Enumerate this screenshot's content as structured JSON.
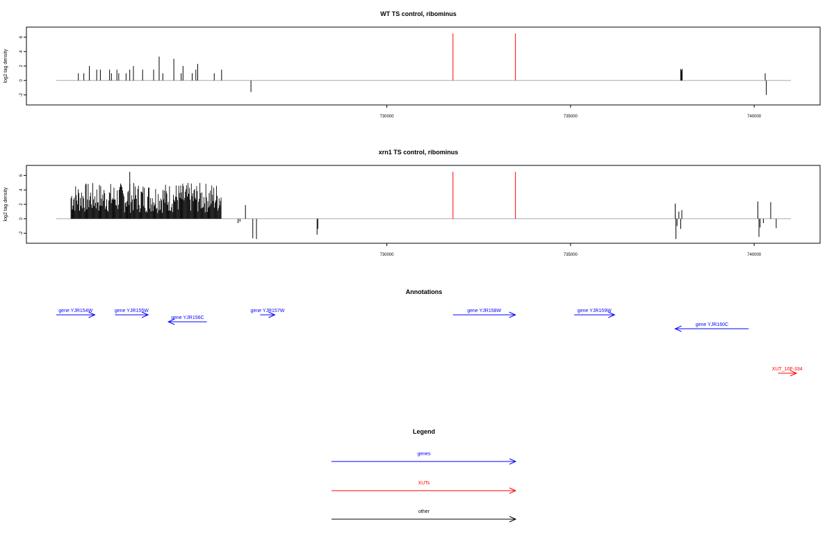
{
  "chart_data": [
    {
      "type": "bar",
      "title": "WT TS control, ribominus",
      "ylabel": "log2 tag density",
      "xlabel": "",
      "xlim": [
        721000,
        741000
      ],
      "ylim": [
        -3,
        7
      ],
      "xticks": [
        730000,
        735000,
        740000
      ],
      "yticks": [
        -2,
        0,
        2,
        4,
        6
      ],
      "baseline_color": "#aaaaaa",
      "series": [
        {
          "color": "#000000",
          "points": [
            [
              721600,
              1.0
            ],
            [
              721750,
              1.0
            ],
            [
              721900,
              2.0
            ],
            [
              722100,
              1.5
            ],
            [
              722200,
              1.5
            ],
            [
              722450,
              1.5
            ],
            [
              722500,
              1.0
            ],
            [
              722650,
              1.5
            ],
            [
              722700,
              1.0
            ],
            [
              722900,
              1.0
            ],
            [
              723000,
              1.5
            ],
            [
              723100,
              2.0
            ],
            [
              723350,
              1.5
            ],
            [
              723650,
              1.5
            ],
            [
              723800,
              3.3
            ],
            [
              723900,
              1.0
            ],
            [
              724200,
              3.0
            ],
            [
              724400,
              1.0
            ],
            [
              724450,
              2.0
            ],
            [
              724700,
              1.0
            ],
            [
              724800,
              1.5
            ],
            [
              724850,
              2.3
            ],
            [
              725300,
              1.0
            ],
            [
              725500,
              1.5
            ],
            [
              726300,
              -1.6
            ],
            [
              738000,
              1.6
            ],
            [
              738020,
              1.4
            ],
            [
              738040,
              1.6
            ],
            [
              740300,
              1.0
            ],
            [
              740330,
              -2.0
            ]
          ]
        },
        {
          "color": "#ff0000",
          "points": [
            [
              731800,
              6.5
            ],
            [
              733500,
              6.5
            ]
          ]
        }
      ]
    },
    {
      "type": "bar",
      "title": "xrn1 TS control, ribominus",
      "ylabel": "log2 tag density",
      "xlabel": "",
      "xlim": [
        721000,
        741000
      ],
      "ylim": [
        -3,
        7
      ],
      "xticks": [
        730000,
        735000,
        740000
      ],
      "yticks": [
        -2,
        0,
        2,
        4,
        6
      ],
      "baseline_color": "#aaaaaa",
      "dense_region": {
        "x": [
          721400,
          725500
        ],
        "range": [
          0.8,
          5.0
        ],
        "peak": [
          723000,
          6.5
        ]
      },
      "series": [
        {
          "color": "#000000",
          "points": [
            [
              725950,
              -0.6
            ],
            [
              726000,
              -0.4
            ],
            [
              726150,
              1.9
            ],
            [
              726350,
              -2.7
            ],
            [
              726450,
              -2.8
            ],
            [
              728100,
              -2.2
            ],
            [
              728120,
              -1.4
            ],
            [
              737850,
              2.1
            ],
            [
              737870,
              -2.8
            ],
            [
              737900,
              -1.0
            ],
            [
              737950,
              1.0
            ],
            [
              738000,
              -1.4
            ],
            [
              738030,
              1.2
            ],
            [
              740100,
              2.4
            ],
            [
              740130,
              -2.5
            ],
            [
              740160,
              -1.2
            ],
            [
              740250,
              -0.6
            ],
            [
              740450,
              2.3
            ],
            [
              740600,
              -1.3
            ]
          ]
        },
        {
          "color": "#ff0000",
          "points": [
            [
              731800,
              6.5
            ],
            [
              733500,
              6.5
            ]
          ]
        }
      ]
    }
  ],
  "annotations": {
    "title": "Annotations",
    "xlim": [
      721000,
      741000
    ],
    "items": [
      {
        "label": "gene YJR154W",
        "start": 721000,
        "end": 722050,
        "color": "#0000ff",
        "track": 0
      },
      {
        "label": "gene YJR155W",
        "start": 722600,
        "end": 723500,
        "color": "#0000ff",
        "track": 0
      },
      {
        "label": "gene YJR156C",
        "start": 725100,
        "end": 724050,
        "color": "#0000ff",
        "track": 1
      },
      {
        "label": "gene YJR157W",
        "start": 726550,
        "end": 726950,
        "color": "#0000ff",
        "track": 0
      },
      {
        "label": "gene YJR158W",
        "start": 731800,
        "end": 733500,
        "color": "#0000ff",
        "track": 0
      },
      {
        "label": "gene YJR159W",
        "start": 735100,
        "end": 736200,
        "color": "#0000ff",
        "track": 0
      },
      {
        "label": "gene YJR160C",
        "start": 739850,
        "end": 737850,
        "color": "#0000ff",
        "track": 2
      },
      {
        "label": "XUT_10F-334",
        "start": 740650,
        "end": 741150,
        "color": "#ff0000",
        "track": 3
      }
    ]
  },
  "legend": {
    "title": "Legend",
    "items": [
      {
        "label": "genes",
        "color": "#0000ff"
      },
      {
        "label": "XUTs",
        "color": "#ff0000"
      },
      {
        "label": "other",
        "color": "#000000"
      }
    ]
  }
}
